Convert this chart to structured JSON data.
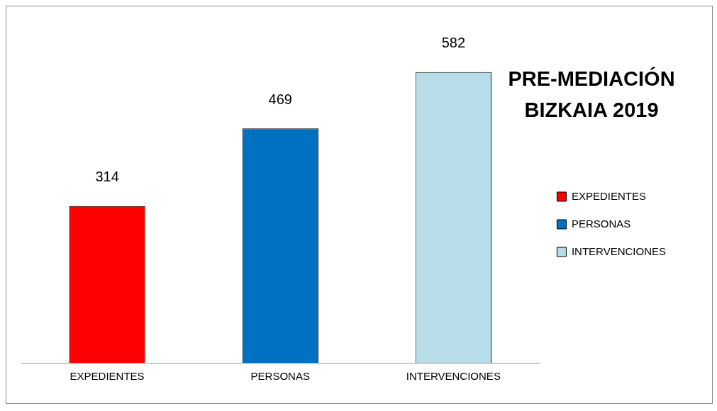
{
  "chart_data": {
    "type": "bar",
    "title": "PRE-MEDIACIÓN BIZKAIA 2019",
    "categories": [
      "EXPEDIENTES",
      "PERSONAS",
      "INTERVENCIONES"
    ],
    "series": [
      {
        "name": "EXPEDIENTES",
        "color": "#ff0000",
        "values": [
          314,
          null,
          null
        ]
      },
      {
        "name": "PERSONAS",
        "color": "#0070c0",
        "values": [
          null,
          469,
          null
        ]
      },
      {
        "name": "INTERVENCIONES",
        "color": "#b7dde8",
        "values": [
          null,
          null,
          582
        ]
      }
    ],
    "data_labels": true,
    "legend": "right",
    "grid": false
  }
}
